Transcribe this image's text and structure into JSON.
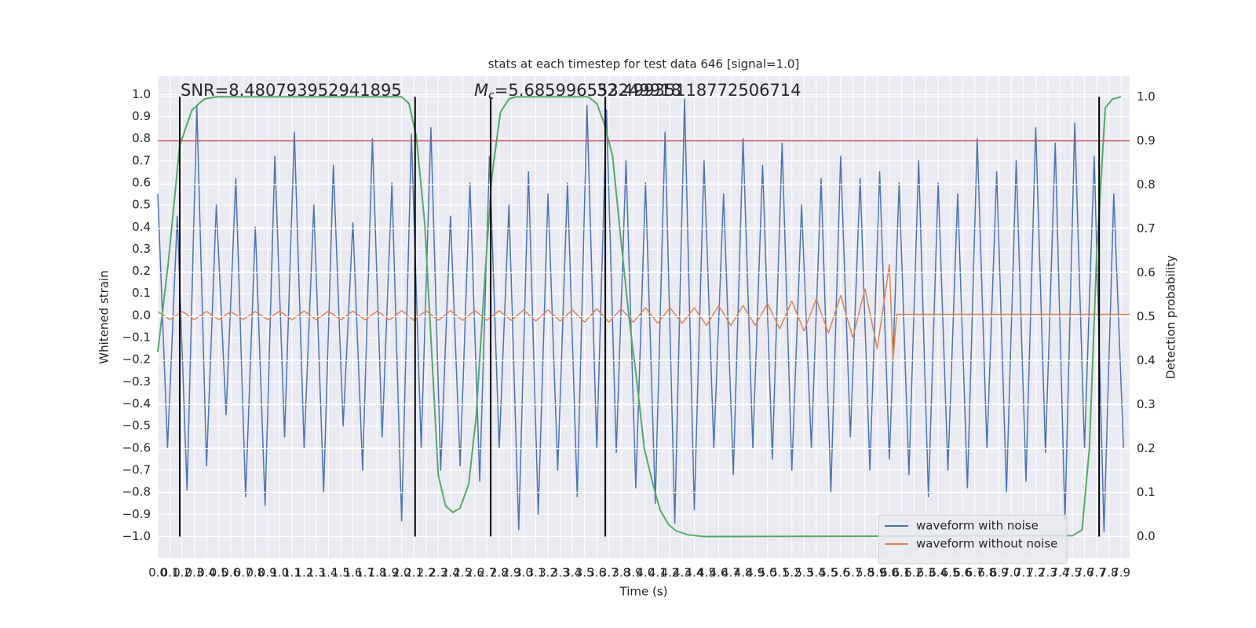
{
  "chart_data": {
    "type": "line",
    "title": "stats at each timestep for test data 646 [signal=1.0]",
    "xlabel": "Time (s)",
    "ylabel": "Whitened strain",
    "y2label": "Detection probability",
    "annotations": {
      "snr": "SNR=8.480793952941895",
      "mass_symbol": "M",
      "mass_subscript": "c",
      "mass_value": "=5.685996553249918",
      "overlap": "32.49935118772506714"
    },
    "xlim": [
      0,
      7.97
    ],
    "ylim": [
      -1.098,
      1.083
    ],
    "y2lim": [
      -0.049,
      1.047
    ],
    "grid": true,
    "background": "#eaeaf2",
    "legend": "lower right",
    "xticks": [
      {
        "value": 0,
        "label": "0.0"
      },
      0.1,
      0.2,
      0.3,
      0.4,
      0.5,
      0.6,
      0.7,
      0.8,
      0.9,
      {
        "value": 1,
        "label": "1.0"
      },
      1.1,
      1.2,
      1.3,
      1.4,
      1.5,
      1.6,
      1.7,
      1.8,
      1.9,
      {
        "value": 2,
        "label": "2.0"
      },
      2.1,
      2.2,
      2.3,
      2.4,
      2.5,
      2.6,
      2.7,
      2.8,
      2.9,
      {
        "value": 3,
        "label": "3.0"
      },
      3.1,
      3.2,
      3.3,
      3.4,
      3.5,
      3.6,
      3.7,
      3.8,
      3.9,
      {
        "value": 4,
        "label": "4.0"
      },
      4.1,
      4.2,
      4.3,
      4.4,
      4.5,
      4.6,
      4.7,
      4.8,
      4.9,
      {
        "value": 5,
        "label": "5.0"
      },
      5.1,
      5.2,
      5.3,
      5.4,
      5.5,
      5.6,
      5.7,
      5.8,
      5.9,
      {
        "value": 6,
        "label": "6.0"
      },
      6.1,
      6.2,
      6.3,
      6.4,
      6.5,
      6.6,
      6.7,
      6.8,
      6.9,
      {
        "value": 7,
        "label": "7.0"
      },
      7.1,
      7.2,
      7.3,
      7.4,
      7.5,
      7.6,
      7.7,
      7.8,
      7.9
    ],
    "yticks": [
      {
        "value": -1,
        "label": "−1.0"
      },
      {
        "value": -0.9,
        "label": "−0.9"
      },
      {
        "value": -0.8,
        "label": "−0.8"
      },
      {
        "value": -0.7,
        "label": "−0.7"
      },
      {
        "value": -0.6,
        "label": "−0.6"
      },
      {
        "value": -0.5,
        "label": "−0.5"
      },
      {
        "value": -0.4,
        "label": "−0.4"
      },
      {
        "value": -0.3,
        "label": "−0.3"
      },
      {
        "value": -0.2,
        "label": "−0.2"
      },
      {
        "value": -0.1,
        "label": "−0.1"
      },
      {
        "value": 0,
        "label": "0.0"
      },
      0.1,
      0.2,
      0.3,
      0.4,
      0.5,
      0.6,
      0.7,
      0.8,
      0.9,
      {
        "value": 1,
        "label": "1.0"
      }
    ],
    "y2ticks": [
      {
        "value": 0,
        "label": "0.0"
      },
      0.1,
      0.2,
      0.3,
      0.4,
      0.5,
      0.6,
      0.7,
      0.8,
      0.9,
      {
        "value": 1,
        "label": "1.0"
      }
    ],
    "series": [
      {
        "name": "waveform with noise",
        "color": "#4c72b0",
        "x": [
          0,
          0.08,
          0.16,
          0.24,
          0.32,
          0.4,
          0.48,
          0.56,
          0.64,
          0.72,
          0.8,
          0.88,
          0.96,
          1.04,
          1.12,
          1.2,
          1.28,
          1.36,
          1.44,
          1.52,
          1.6,
          1.68,
          1.76,
          1.84,
          1.92,
          2,
          2.08,
          2.16,
          2.24,
          2.32,
          2.4,
          2.48,
          2.56,
          2.64,
          2.72,
          2.8,
          2.88,
          2.96,
          3.04,
          3.12,
          3.2,
          3.28,
          3.36,
          3.44,
          3.52,
          3.6,
          3.68,
          3.76,
          3.84,
          3.92,
          4,
          4.08,
          4.16,
          4.24,
          4.32,
          4.4,
          4.48,
          4.56,
          4.64,
          4.72,
          4.8,
          4.88,
          4.96,
          5.04,
          5.12,
          5.2,
          5.28,
          5.36,
          5.44,
          5.52,
          5.6,
          5.68,
          5.76,
          5.84,
          5.92,
          6,
          6.08,
          6.16,
          6.24,
          6.32,
          6.4,
          6.48,
          6.56,
          6.64,
          6.72,
          6.8,
          6.88,
          6.96,
          7.04,
          7.12,
          7.2,
          7.28,
          7.36,
          7.44,
          7.52,
          7.6,
          7.68,
          7.76,
          7.84,
          7.92
        ],
        "values": [
          0.55,
          -0.6,
          0.45,
          -0.79,
          0.95,
          -0.68,
          0.5,
          -0.45,
          0.62,
          -0.82,
          0.4,
          -0.86,
          0.72,
          -0.55,
          0.83,
          -0.6,
          0.5,
          -0.8,
          0.68,
          -0.5,
          0.42,
          -0.7,
          0.8,
          -0.55,
          0.6,
          -0.93,
          0.82,
          -0.6,
          0.85,
          -0.7,
          0.45,
          -0.68,
          0.6,
          -0.75,
          0.72,
          -0.6,
          0.5,
          -0.97,
          0.65,
          -0.9,
          0.55,
          -0.7,
          0.6,
          -0.82,
          0.95,
          -0.6,
          0.93,
          -0.62,
          0.7,
          -0.78,
          0.6,
          -0.85,
          0.83,
          -0.94,
          0.98,
          -0.88,
          0.7,
          -0.6,
          0.55,
          -0.72,
          0.8,
          -0.6,
          0.68,
          -0.65,
          0.78,
          -0.7,
          0.5,
          -0.6,
          0.62,
          -0.8,
          0.72,
          -0.55,
          0.62,
          -0.7,
          0.65,
          -0.65,
          0.6,
          -0.72,
          0.7,
          -0.82,
          0.6,
          -0.7,
          0.55,
          -0.78,
          0.8,
          -0.6,
          0.65,
          -0.8,
          0.7,
          -0.75,
          0.85,
          -0.62,
          0.78,
          -0.93,
          0.87,
          -0.6,
          0.72,
          -0.98,
          0.55,
          -0.6
        ]
      },
      {
        "name": "waveform without noise",
        "color": "#dd8452",
        "x": [
          0,
          0.1,
          0.2,
          0.3,
          0.4,
          0.5,
          0.6,
          0.7,
          0.8,
          0.9,
          1,
          1.1,
          1.2,
          1.3,
          1.4,
          1.5,
          1.6,
          1.7,
          1.8,
          1.9,
          2,
          2.1,
          2.2,
          2.3,
          2.4,
          2.5,
          2.6,
          2.7,
          2.8,
          2.9,
          3,
          3.1,
          3.2,
          3.3,
          3.4,
          3.5,
          3.6,
          3.7,
          3.8,
          3.9,
          4,
          4.1,
          4.2,
          4.3,
          4.4,
          4.5,
          4.6,
          4.7,
          4.8,
          4.9,
          5,
          5.1,
          5.2,
          5.3,
          5.4,
          5.5,
          5.6,
          5.7,
          5.8,
          5.9,
          6,
          6.03,
          6.06,
          7.97
        ],
        "values": [
          0.018,
          -0.018,
          0.018,
          -0.018,
          0.018,
          -0.018,
          0.018,
          -0.018,
          0.018,
          -0.018,
          0.02,
          -0.02,
          0.02,
          -0.02,
          0.02,
          -0.02,
          0.02,
          -0.02,
          0.02,
          -0.02,
          0.022,
          -0.022,
          0.022,
          -0.022,
          0.022,
          -0.022,
          0.022,
          -0.022,
          0.022,
          -0.022,
          0.025,
          -0.025,
          0.025,
          -0.025,
          0.025,
          -0.03,
          0.03,
          -0.03,
          0.03,
          -0.03,
          0.035,
          -0.035,
          0.035,
          -0.035,
          0.035,
          -0.045,
          0.045,
          -0.045,
          0.045,
          -0.045,
          0.055,
          -0.06,
          0.065,
          -0.07,
          0.075,
          -0.08,
          0.09,
          -0.1,
          0.12,
          -0.15,
          0.23,
          -0.2,
          0.005,
          0.005
        ]
      },
      {
        "color": "#55a868",
        "axis": "y2",
        "x": [
          0,
          0.085,
          0.18,
          0.28,
          0.38,
          0.48,
          2,
          2.06,
          2.12,
          2.19,
          2.25,
          2.3,
          2.36,
          2.42,
          2.48,
          2.55,
          2.61,
          2.68,
          2.74,
          2.81,
          2.88,
          2.94,
          3.53,
          3.6,
          3.66,
          3.73,
          3.8,
          3.86,
          3.93,
          3.99,
          4.06,
          4.12,
          4.19,
          4.25,
          4.35,
          4.48,
          7.5,
          7.58,
          7.64,
          7.7,
          7.77,
          7.83,
          7.9
        ],
        "values": [
          0.42,
          0.62,
          0.89,
          0.97,
          0.995,
          1,
          1,
          0.985,
          0.91,
          0.71,
          0.4,
          0.14,
          0.07,
          0.055,
          0.065,
          0.12,
          0.27,
          0.58,
          0.82,
          0.965,
          0.995,
          1,
          1,
          0.985,
          0.94,
          0.865,
          0.67,
          0.51,
          0.35,
          0.2,
          0.12,
          0.06,
          0.027,
          0.013,
          0.004,
          0,
          0.002,
          0.015,
          0.2,
          0.64,
          0.975,
          0.995,
          1
        ]
      }
    ],
    "hline": {
      "value": 0.9,
      "axis": "y2",
      "color": "#c44e52"
    },
    "vlines": {
      "x": [
        0.18,
        2.11,
        2.73,
        3.67,
        7.72
      ],
      "span": [
        0,
        1
      ],
      "axis": "y2",
      "color": "#000000"
    }
  }
}
